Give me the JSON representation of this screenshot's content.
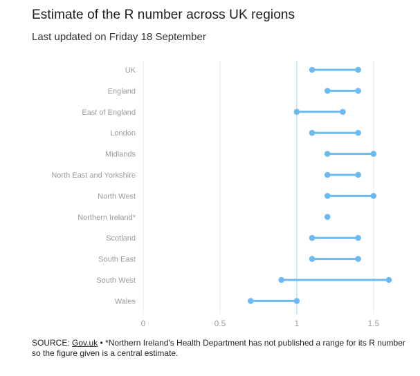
{
  "header": {
    "title": "Estimate of the R number across UK regions",
    "subtitle": "Last updated on Friday 18 September"
  },
  "chart_data": {
    "type": "dumbbell",
    "categories": [
      "UK",
      "England",
      "East of England",
      "London",
      "Midlands",
      "North East and Yorkshire",
      "North West",
      "Northern Ireland*",
      "Scotland",
      "South East",
      "South West",
      "Wales"
    ],
    "series": [
      {
        "values": [
          1.1,
          1.2,
          1.0,
          1.1,
          1.2,
          1.2,
          1.2,
          1.2,
          1.1,
          1.1,
          0.9,
          0.7
        ]
      },
      {
        "values": [
          1.4,
          1.4,
          1.3,
          1.4,
          1.5,
          1.4,
          1.5,
          1.2,
          1.4,
          1.4,
          1.6,
          1.0
        ]
      }
    ],
    "xlim": [
      0,
      1.6
    ],
    "xticks": [
      "0",
      "0.5",
      "1",
      "1.5"
    ],
    "reference_line": 1,
    "grid": true,
    "colors": {
      "series": "#6cbaf2",
      "reference": "#aed8f5",
      "grid": "#e8e8e8",
      "label": "#9a9a9a"
    }
  },
  "footer": {
    "source_prefix": "SOURCE:",
    "source_link": "Gov.uk",
    "note": "• *Northern Ireland's Health Department has not published a range for its R number so the figure given is a central estimate."
  }
}
